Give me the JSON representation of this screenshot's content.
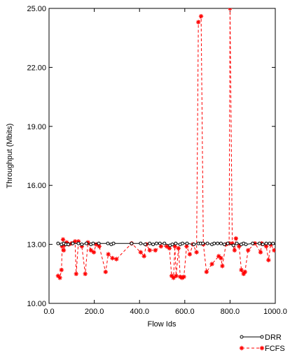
{
  "chart_data": {
    "type": "line",
    "xlabel": "Flow Ids",
    "ylabel": "Throughput (Mbits)",
    "xlim": [
      0,
      1000
    ],
    "ylim": [
      10,
      25
    ],
    "xticks": [
      "0.0",
      "200.0",
      "400.0",
      "600.0",
      "800.0",
      "1000.0"
    ],
    "xtick_values": [
      0,
      200,
      400,
      600,
      800,
      1000
    ],
    "yticks": [
      "10.00",
      "13.00",
      "16.00",
      "19.00",
      "22.00",
      "25.00"
    ],
    "ytick_values": [
      10,
      13,
      16,
      19,
      22,
      25
    ],
    "grid": false,
    "legend_position": "bottom-right",
    "series": [
      {
        "name": "DRR",
        "color": "#000000",
        "line": "solid",
        "marker": "circle",
        "x": [
          40,
          55,
          65,
          75,
          85,
          105,
          130,
          145,
          165,
          185,
          195,
          220,
          260,
          275,
          285,
          365,
          405,
          425,
          445,
          460,
          475,
          490,
          510,
          535,
          545,
          560,
          580,
          590,
          610,
          640,
          660,
          670,
          680,
          700,
          720,
          730,
          745,
          760,
          775,
          790,
          815,
          830,
          850,
          860,
          870,
          900,
          930,
          945,
          960,
          975,
          990
        ],
        "y": [
          13.05,
          13.0,
          13.05,
          13.0,
          13.0,
          13.05,
          13.05,
          13.0,
          13.05,
          13.0,
          13.05,
          13.05,
          13.05,
          13.0,
          13.05,
          13.05,
          13.05,
          13.0,
          13.05,
          13.0,
          13.05,
          13.05,
          13.05,
          12.95,
          13.0,
          13.05,
          13.0,
          13.05,
          13.05,
          13.0,
          13.05,
          13.05,
          13.05,
          13.05,
          13.0,
          13.05,
          13.05,
          13.05,
          13.0,
          13.05,
          12.95,
          13.05,
          13.0,
          13.05,
          13.0,
          13.05,
          13.05,
          13.0,
          13.05,
          13.05,
          13.05
        ]
      },
      {
        "name": "FCFS",
        "color": "#ff0000",
        "line": "dashed",
        "marker": "asterisk",
        "x": [
          40,
          48,
          55,
          58,
          62,
          65,
          72,
          78,
          88,
          100,
          115,
          120,
          130,
          145,
          160,
          172,
          185,
          198,
          208,
          222,
          250,
          262,
          280,
          298,
          365,
          405,
          420,
          430,
          445,
          470,
          495,
          520,
          532,
          542,
          550,
          556,
          562,
          572,
          580,
          588,
          596,
          608,
          622,
          636,
          652,
          660,
          672,
          682,
          696,
          720,
          750,
          760,
          766,
          782,
          796,
          800,
          810,
          820,
          826,
          840,
          850,
          860,
          866,
          880,
          910,
          935,
          940,
          960,
          970,
          980,
          995
        ],
        "y": [
          11.4,
          11.3,
          11.7,
          12.9,
          13.25,
          12.7,
          13.0,
          13.1,
          13.0,
          13.05,
          13.15,
          11.5,
          13.15,
          12.9,
          11.5,
          13.1,
          12.7,
          12.6,
          13.0,
          12.9,
          11.6,
          12.5,
          12.3,
          12.25,
          13.05,
          12.6,
          12.4,
          13.0,
          12.7,
          12.7,
          12.9,
          12.9,
          12.8,
          11.4,
          11.3,
          12.9,
          11.4,
          12.8,
          11.35,
          11.3,
          11.35,
          12.9,
          12.5,
          13.0,
          12.6,
          24.3,
          24.6,
          13.0,
          11.6,
          12.0,
          12.4,
          12.3,
          11.9,
          13.0,
          13.05,
          25.0,
          13.05,
          12.7,
          13.3,
          12.9,
          11.7,
          11.5,
          11.6,
          12.7,
          13.05,
          12.6,
          13.05,
          12.9,
          12.2,
          13.0,
          12.7
        ]
      }
    ]
  }
}
